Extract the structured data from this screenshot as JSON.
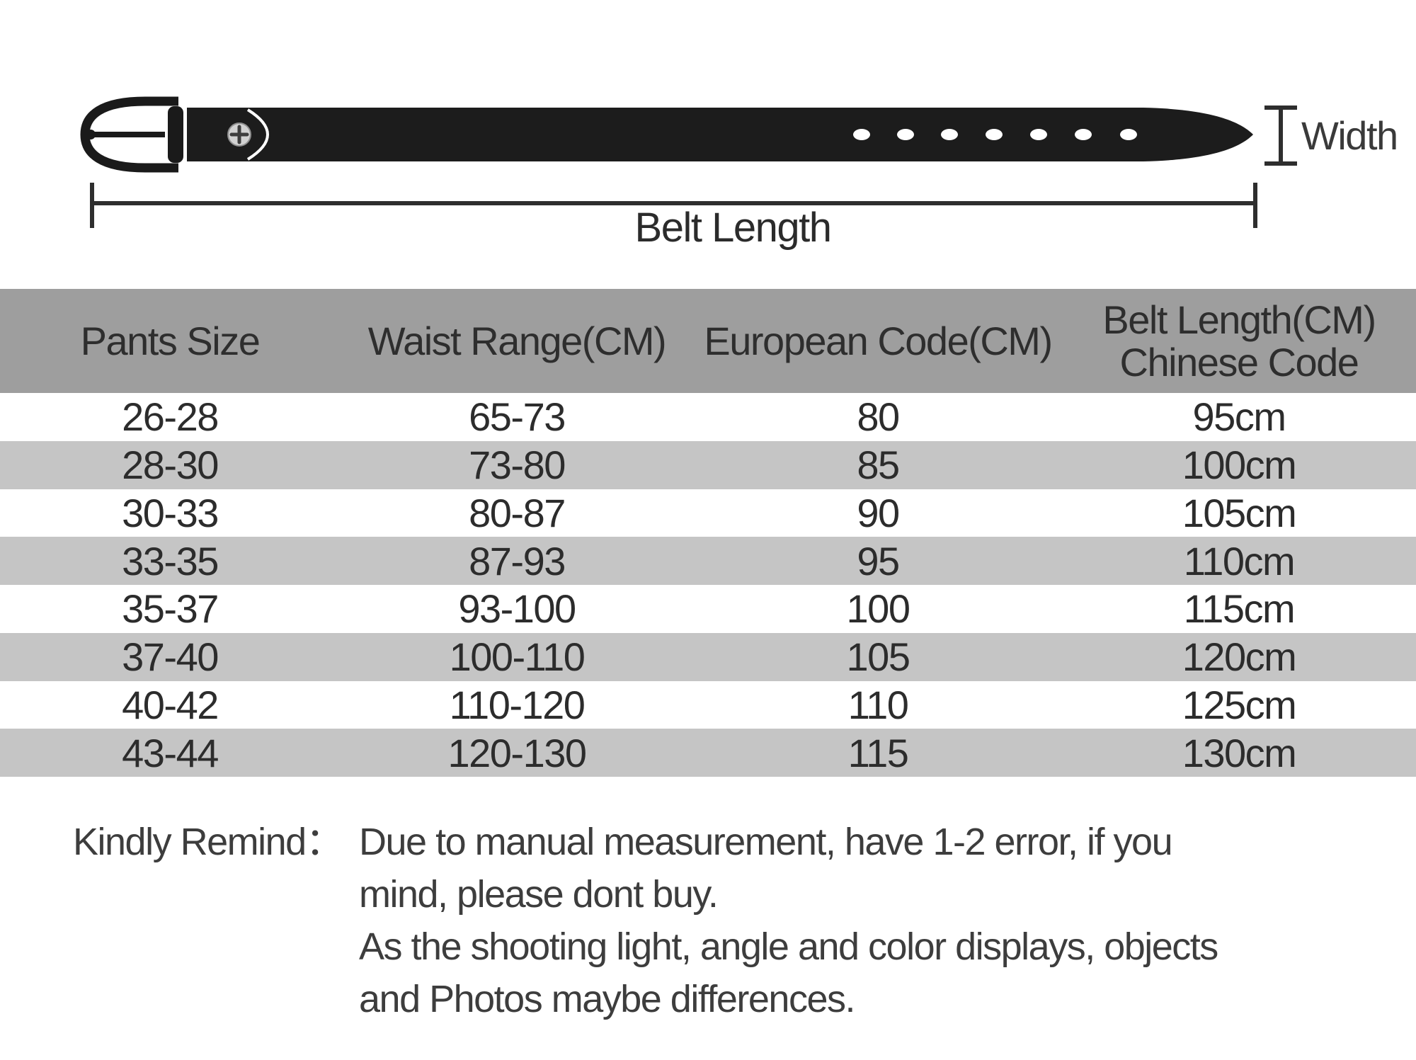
{
  "page": {
    "background": "#ffffff"
  },
  "diagram": {
    "width_label": "Width",
    "length_label": "Belt Length",
    "belt_color": "#1c1c1c",
    "line_color": "#2e2e2e",
    "hole_count": 7
  },
  "table": {
    "header_bg": "#9e9e9e",
    "alt_row_bg": "#c5c5c5",
    "headers": [
      "Pants Size",
      "Waist Range(CM)",
      "European Code(CM)",
      "Belt Length(CM)\nChinese Code"
    ],
    "rows": [
      [
        "26-28",
        "65-73",
        "80",
        "95cm"
      ],
      [
        "28-30",
        "73-80",
        "85",
        "100cm"
      ],
      [
        "30-33",
        "80-87",
        "90",
        "105cm"
      ],
      [
        "33-35",
        "87-93",
        "95",
        "110cm"
      ],
      [
        "35-37",
        "93-100",
        "100",
        "115cm"
      ],
      [
        "37-40",
        "100-110",
        "105",
        "120cm"
      ],
      [
        "40-42",
        "110-120",
        "110",
        "125cm"
      ],
      [
        "43-44",
        "120-130",
        "115",
        "130cm"
      ]
    ]
  },
  "remind": {
    "label": "Kindly Remind：",
    "lines": [
      "Due to manual measurement, have 1-2 error, if you",
      "mind, please dont buy.",
      "As the shooting light, angle and color displays, objects",
      "and Photos maybe differences."
    ]
  },
  "chart_data": {
    "type": "table",
    "title": "Belt size chart",
    "columns": [
      "Pants Size",
      "Waist Range(CM)",
      "European Code(CM)",
      "Belt Length(CM) Chinese Code"
    ],
    "rows": [
      [
        "26-28",
        "65-73",
        "80",
        "95cm"
      ],
      [
        "28-30",
        "73-80",
        "85",
        "100cm"
      ],
      [
        "30-33",
        "80-87",
        "90",
        "105cm"
      ],
      [
        "33-35",
        "87-93",
        "95",
        "110cm"
      ],
      [
        "35-37",
        "93-100",
        "100",
        "115cm"
      ],
      [
        "37-40",
        "100-110",
        "105",
        "120cm"
      ],
      [
        "40-42",
        "110-120",
        "110",
        "125cm"
      ],
      [
        "43-44",
        "120-130",
        "115",
        "130cm"
      ]
    ],
    "annotations": [
      "Width",
      "Belt Length"
    ]
  }
}
